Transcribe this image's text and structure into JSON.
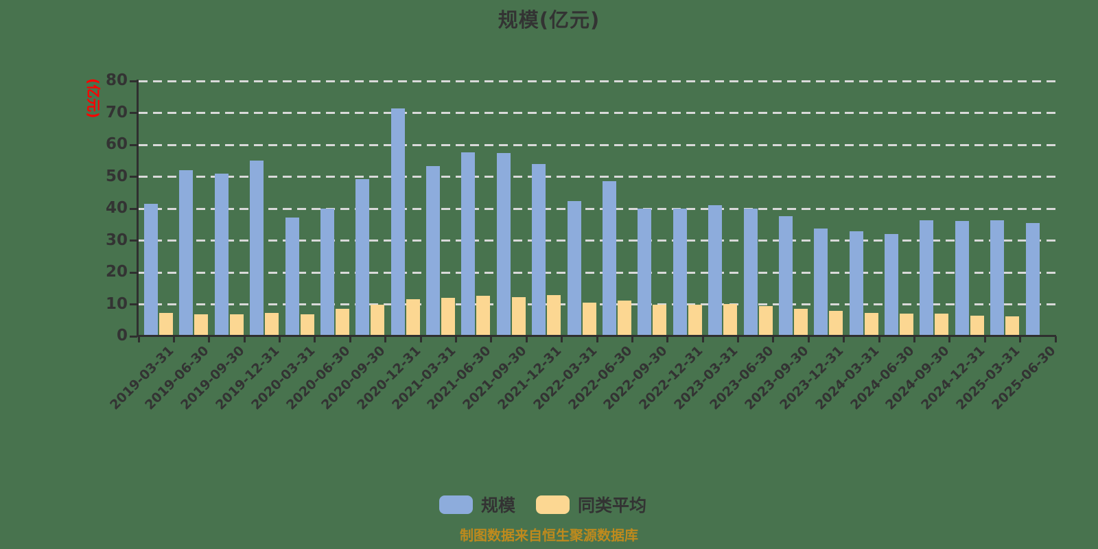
{
  "title": "规模(亿元)",
  "y_axis": {
    "unit_label": "(亿元)",
    "unit_label_color": "#fe0000",
    "ticks": [
      0,
      10,
      20,
      30,
      40,
      50,
      60,
      70,
      80
    ]
  },
  "legend": {
    "items": [
      {
        "label": "规模",
        "color": "#8dacdc"
      },
      {
        "label": "同类平均",
        "color": "#fcd792"
      }
    ]
  },
  "footer": {
    "text": "制图数据来自恒生聚源数据库",
    "color": "#bf8a1d"
  },
  "colors": {
    "background": "#48734e",
    "bar_blue": "#8dacdc",
    "bar_yellow": "#fcd792",
    "gridline": "#d9d9d9",
    "axis": "#2f2f2f",
    "text": "#333333"
  },
  "chart_data": {
    "type": "bar",
    "title": "规模(亿元)",
    "ylabel": "(亿元)",
    "ylim": [
      0,
      80
    ],
    "grid": "dashed-horizontal",
    "legend_position": "bottom",
    "categories": [
      "2019-03-31",
      "2019-06-30",
      "2019-09-30",
      "2019-12-31",
      "2020-03-31",
      "2020-06-30",
      "2020-09-30",
      "2020-12-31",
      "2021-03-31",
      "2021-06-30",
      "2021-09-30",
      "2021-12-31",
      "2022-03-31",
      "2022-06-30",
      "2022-09-30",
      "2022-12-31",
      "2023-03-31",
      "2023-06-30",
      "2023-09-30",
      "2023-12-31",
      "2024-03-31",
      "2024-06-30",
      "2024-09-30",
      "2024-12-31",
      "2025-03-31",
      "2025-06-30"
    ],
    "series": [
      {
        "name": "规模",
        "color": "#8dacdc",
        "values": [
          41.5,
          52.0,
          50.9,
          55.0,
          37.3,
          40.0,
          49.3,
          71.4,
          53.3,
          57.6,
          57.4,
          54.0,
          42.3,
          48.7,
          40.0,
          40.1,
          41.1,
          40.0,
          37.6,
          33.7,
          33.0,
          32.1,
          36.4,
          36.1,
          36.3,
          35.4
        ]
      },
      {
        "name": "同类平均",
        "color": "#fcd792",
        "values": [
          7.4,
          6.9,
          6.8,
          7.4,
          6.9,
          8.5,
          9.8,
          11.6,
          12.1,
          12.6,
          12.2,
          12.9,
          10.5,
          11.2,
          9.9,
          9.9,
          10.1,
          9.5,
          8.6,
          7.9,
          7.4,
          7.1,
          7.2,
          6.5,
          6.2,
          null
        ]
      }
    ]
  }
}
